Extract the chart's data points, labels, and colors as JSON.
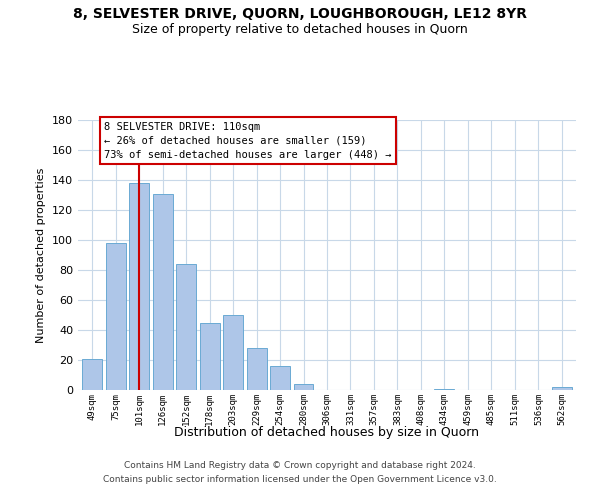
{
  "title": "8, SELVESTER DRIVE, QUORN, LOUGHBOROUGH, LE12 8YR",
  "subtitle": "Size of property relative to detached houses in Quorn",
  "xlabel": "Distribution of detached houses by size in Quorn",
  "ylabel": "Number of detached properties",
  "categories": [
    "49sqm",
    "75sqm",
    "101sqm",
    "126sqm",
    "152sqm",
    "178sqm",
    "203sqm",
    "229sqm",
    "254sqm",
    "280sqm",
    "306sqm",
    "331sqm",
    "357sqm",
    "383sqm",
    "408sqm",
    "434sqm",
    "459sqm",
    "485sqm",
    "511sqm",
    "536sqm",
    "562sqm"
  ],
  "values": [
    21,
    98,
    138,
    131,
    84,
    45,
    50,
    28,
    16,
    4,
    0,
    0,
    0,
    0,
    0,
    1,
    0,
    0,
    0,
    0,
    2
  ],
  "bar_color": "#aec6e8",
  "bar_edge_color": "#6aaad4",
  "vline_x_index": 2,
  "vline_color": "#cc0000",
  "ylim": [
    0,
    180
  ],
  "yticks": [
    0,
    20,
    40,
    60,
    80,
    100,
    120,
    140,
    160,
    180
  ],
  "annotation_line1": "8 SELVESTER DRIVE: 110sqm",
  "annotation_line2": "← 26% of detached houses are smaller (159)",
  "annotation_line3": "73% of semi-detached houses are larger (448) →",
  "annotation_box_color": "#ffffff",
  "annotation_box_edge_color": "#cc0000",
  "footer_line1": "Contains HM Land Registry data © Crown copyright and database right 2024.",
  "footer_line2": "Contains public sector information licensed under the Open Government Licence v3.0.",
  "background_color": "#ffffff",
  "grid_color": "#c8d8e8"
}
